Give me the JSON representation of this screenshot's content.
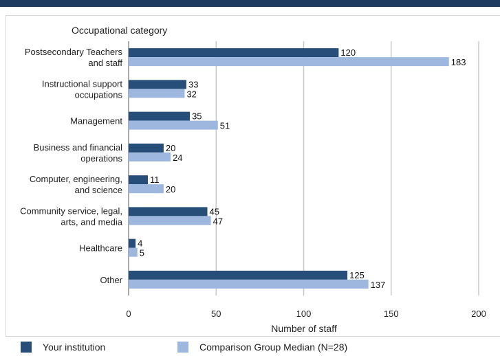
{
  "colors": {
    "series_1": "#274e78",
    "series_2": "#9db7df",
    "grid": "#c8c8c8",
    "axis": "#555555"
  },
  "chart_data": {
    "type": "bar",
    "orientation": "horizontal",
    "title": "Occupational category",
    "xlabel": "Number of staff",
    "ylabel": "",
    "xlim": [
      0,
      200
    ],
    "xticks": [
      0,
      50,
      100,
      150,
      200
    ],
    "grid": true,
    "categories": [
      [
        "Postsecondary Teachers",
        "and staff"
      ],
      [
        "Instructional support",
        "occupations"
      ],
      [
        "Management"
      ],
      [
        "Business and financial",
        "operations"
      ],
      [
        "Computer, engineering,",
        "and science"
      ],
      [
        "Community service, legal,",
        "arts, and media"
      ],
      [
        "Healthcare"
      ],
      [
        "Other"
      ]
    ],
    "series": [
      {
        "name": "Your institution",
        "values": [
          120,
          33,
          35,
          20,
          11,
          45,
          4,
          125
        ]
      },
      {
        "name": "Comparison Group Median (N=28)",
        "values": [
          183,
          32,
          51,
          24,
          20,
          47,
          5,
          137
        ]
      }
    ],
    "legend_position": "bottom"
  }
}
